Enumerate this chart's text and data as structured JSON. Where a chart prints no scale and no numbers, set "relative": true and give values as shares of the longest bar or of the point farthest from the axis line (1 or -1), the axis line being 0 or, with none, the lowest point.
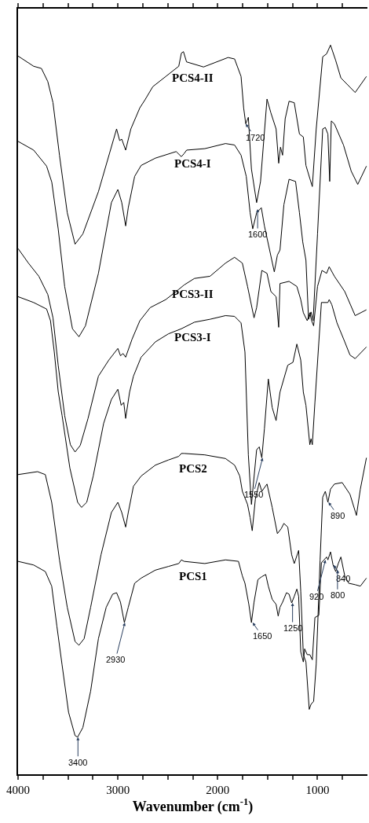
{
  "chart_data": {
    "type": "line",
    "relative": true,
    "xlabel": "Wavenumber (cm$^{-1}$)",
    "xlim": [
      4000,
      500
    ],
    "xticks": [
      4000,
      {
        "value": 3750,
        "label": null
      },
      {
        "value": 3500,
        "label": null
      },
      {
        "value": 3250,
        "label": null
      },
      3000,
      {
        "value": 2750,
        "label": null
      },
      {
        "value": 2500,
        "label": null
      },
      {
        "value": 2250,
        "label": null
      },
      2000,
      {
        "value": 1750,
        "label": null
      },
      {
        "value": 1500,
        "label": null
      },
      {
        "value": 1250,
        "label": null
      },
      1000,
      {
        "value": 750,
        "label": null
      }
    ],
    "tick_labels": "x",
    "legend": false,
    "series": [
      {
        "name": "PCS4-II",
        "color": "#000000",
        "x": [
          4000,
          3844,
          3766,
          3702,
          3650,
          3585,
          3507,
          3429,
          3351,
          3195,
          3013,
          2982,
          2961,
          2922,
          2870,
          2780,
          2728,
          2650,
          2520,
          2390,
          2364,
          2343,
          2312,
          2142,
          1896,
          1831,
          1766,
          1740,
          1719,
          1693,
          1662,
          1610,
          1571,
          1506,
          1467,
          1415,
          1389,
          1371,
          1350,
          1324,
          1285,
          1233,
          1181,
          1142,
          1116,
          1077,
          1052,
          1013,
          948,
          909,
          870,
          818,
          766,
          623,
          510
        ],
        "values": [
          0.985,
          0.971,
          0.968,
          0.95,
          0.921,
          0.849,
          0.77,
          0.727,
          0.741,
          0.799,
          0.885,
          0.869,
          0.871,
          0.856,
          0.885,
          0.914,
          0.925,
          0.943,
          0.957,
          0.971,
          0.989,
          0.991,
          0.977,
          0.97,
          0.983,
          0.981,
          0.957,
          0.914,
          0.892,
          0.901,
          0.83,
          0.784,
          0.813,
          0.926,
          0.907,
          0.885,
          0.838,
          0.86,
          0.849,
          0.899,
          0.923,
          0.921,
          0.878,
          0.874,
          0.835,
          0.817,
          0.806,
          0.885,
          0.984,
          0.988,
          1.0,
          0.979,
          0.955,
          0.935,
          0.957
        ]
      },
      {
        "name": "PCS4-I",
        "color": "#000000",
        "x": [
          4000,
          3844,
          3714,
          3662,
          3598,
          3533,
          3455,
          3390,
          3325,
          3195,
          3065,
          3000,
          2961,
          2922,
          2896,
          2832,
          2767,
          2624,
          2416,
          2364,
          2338,
          2311,
          2129,
          1922,
          1831,
          1766,
          1714,
          1675,
          1649,
          1610,
          1563,
          1532,
          1480,
          1433,
          1402,
          1376,
          1337,
          1285,
          1220,
          1181,
          1148,
          1116,
          1090,
          1065,
          1044,
          1000,
          948,
          922,
          896,
          878,
          862,
          831,
          740,
          662,
          597,
          510
        ],
        "values": [
          0.868,
          0.856,
          0.834,
          0.812,
          0.748,
          0.669,
          0.611,
          0.6,
          0.615,
          0.687,
          0.784,
          0.802,
          0.784,
          0.752,
          0.777,
          0.82,
          0.835,
          0.845,
          0.854,
          0.847,
          0.851,
          0.856,
          0.858,
          0.865,
          0.863,
          0.849,
          0.82,
          0.77,
          0.748,
          0.77,
          0.777,
          0.752,
          0.719,
          0.689,
          0.712,
          0.719,
          0.781,
          0.816,
          0.813,
          0.77,
          0.73,
          0.705,
          0.624,
          0.634,
          0.622,
          0.741,
          0.885,
          0.887,
          0.878,
          0.813,
          0.896,
          0.892,
          0.863,
          0.827,
          0.809,
          0.834
        ]
      },
      {
        "name": "PCS3-II",
        "color": "#000000",
        "x": [
          4000,
          3896,
          3792,
          3702,
          3650,
          3598,
          3533,
          3476,
          3429,
          3377,
          3299,
          3195,
          3091,
          3000,
          2974,
          2948,
          2922,
          2857,
          2780,
          2676,
          2520,
          2390,
          2337,
          2233,
          2077,
          1922,
          1831,
          1753,
          1701,
          1636,
          1610,
          1558,
          1506,
          1467,
          1415,
          1389,
          1376,
          1285,
          1207,
          1168,
          1142,
          1103,
          1077,
          1059,
          1039,
          1000,
          955,
          909,
          883,
          831,
          727,
          623,
          510
        ],
        "values": [
          0.721,
          0.701,
          0.683,
          0.658,
          0.626,
          0.561,
          0.492,
          0.452,
          0.442,
          0.451,
          0.488,
          0.546,
          0.568,
          0.584,
          0.574,
          0.577,
          0.572,
          0.597,
          0.622,
          0.64,
          0.651,
          0.665,
          0.671,
          0.68,
          0.683,
          0.701,
          0.709,
          0.701,
          0.669,
          0.626,
          0.64,
          0.691,
          0.687,
          0.662,
          0.655,
          0.613,
          0.673,
          0.676,
          0.669,
          0.651,
          0.633,
          0.622,
          0.633,
          0.622,
          0.615,
          0.669,
          0.691,
          0.687,
          0.696,
          0.683,
          0.662,
          0.629,
          0.637
        ]
      },
      {
        "name": "PCS3-I",
        "color": "#000000",
        "x": [
          4000,
          3844,
          3714,
          3675,
          3637,
          3598,
          3559,
          3481,
          3403,
          3364,
          3312,
          3247,
          3143,
          3065,
          3000,
          2967,
          2941,
          2922,
          2883,
          2844,
          2767,
          2624,
          2494,
          2364,
          2233,
          2077,
          1922,
          1831,
          1766,
          1727,
          1693,
          1662,
          1610,
          1584,
          1558,
          1532,
          1493,
          1454,
          1415,
          1376,
          1298,
          1246,
          1207,
          1168,
          1142,
          1116,
          1077,
          1065,
          1052,
          1026,
          961,
          896,
          883,
          857,
          805,
          727,
          675,
          623,
          510
        ],
        "values": [
          0.655,
          0.647,
          0.638,
          0.622,
          0.579,
          0.525,
          0.492,
          0.42,
          0.373,
          0.366,
          0.373,
          0.409,
          0.481,
          0.514,
          0.528,
          0.506,
          0.51,
          0.488,
          0.524,
          0.546,
          0.572,
          0.593,
          0.604,
          0.611,
          0.62,
          0.624,
          0.629,
          0.628,
          0.619,
          0.579,
          0.438,
          0.37,
          0.445,
          0.449,
          0.434,
          0.474,
          0.542,
          0.503,
          0.485,
          0.524,
          0.561,
          0.565,
          0.59,
          0.568,
          0.524,
          0.506,
          0.452,
          0.46,
          0.452,
          0.51,
          0.647,
          0.647,
          0.651,
          0.644,
          0.619,
          0.593,
          0.575,
          0.57,
          0.586
        ]
      },
      {
        "name": "PCS2",
        "color": "#000000",
        "x": [
          4000,
          3805,
          3727,
          3663,
          3585,
          3507,
          3429,
          3390,
          3338,
          3273,
          3169,
          3065,
          3000,
          2961,
          2922,
          2896,
          2844,
          2767,
          2624,
          2494,
          2390,
          2364,
          2337,
          2129,
          1922,
          1831,
          1779,
          1753,
          1701,
          1675,
          1654,
          1623,
          1584,
          1558,
          1506,
          1454,
          1402,
          1363,
          1337,
          1298,
          1259,
          1233,
          1189,
          1168,
          1142,
          1116,
          1083,
          1065,
          1039,
          1013,
          974,
          948,
          922,
          896,
          870,
          831,
          753,
          675,
          610,
          571,
          510
        ],
        "values": [
          0.411,
          0.415,
          0.411,
          0.373,
          0.294,
          0.229,
          0.182,
          0.177,
          0.186,
          0.229,
          0.301,
          0.359,
          0.373,
          0.359,
          0.339,
          0.359,
          0.395,
          0.409,
          0.424,
          0.431,
          0.436,
          0.44,
          0.44,
          0.438,
          0.433,
          0.424,
          0.409,
          0.388,
          0.37,
          0.352,
          0.334,
          0.377,
          0.4,
          0.388,
          0.398,
          0.366,
          0.33,
          0.337,
          0.344,
          0.339,
          0.301,
          0.289,
          0.307,
          0.251,
          0.164,
          0.154,
          0.089,
          0.096,
          0.1,
          0.151,
          0.294,
          0.38,
          0.388,
          0.373,
          0.391,
          0.398,
          0.4,
          0.384,
          0.355,
          0.391,
          0.434
        ]
      },
      {
        "name": "PCS1",
        "color": "#000000",
        "x": [
          4000,
          3844,
          3727,
          3663,
          3611,
          3559,
          3494,
          3429,
          3403,
          3351,
          3273,
          3195,
          3117,
          3052,
          3013,
          2974,
          2935,
          2896,
          2832,
          2767,
          2624,
          2494,
          2390,
          2364,
          2337,
          2129,
          1922,
          1792,
          1753,
          1727,
          1688,
          1662,
          1636,
          1597,
          1558,
          1519,
          1493,
          1454,
          1415,
          1394,
          1376,
          1350,
          1311,
          1285,
          1259,
          1233,
          1207,
          1189,
          1168,
          1142,
          1129,
          1103,
          1077,
          1052,
          1026,
          987,
          961,
          935,
          909,
          896,
          870,
          844,
          818,
          792,
          766,
          727,
          688,
          623,
          571,
          510
        ],
        "values": [
          0.292,
          0.287,
          0.278,
          0.258,
          0.203,
          0.15,
          0.085,
          0.053,
          0.051,
          0.064,
          0.114,
          0.186,
          0.229,
          0.247,
          0.249,
          0.236,
          0.208,
          0.229,
          0.262,
          0.269,
          0.28,
          0.285,
          0.289,
          0.294,
          0.292,
          0.289,
          0.294,
          0.292,
          0.272,
          0.262,
          0.233,
          0.208,
          0.236,
          0.267,
          0.271,
          0.274,
          0.258,
          0.24,
          0.233,
          0.217,
          0.229,
          0.236,
          0.249,
          0.247,
          0.235,
          0.244,
          0.254,
          0.244,
          0.168,
          0.154,
          0.172,
          0.164,
          0.164,
          0.157,
          0.215,
          0.218,
          0.29,
          0.294,
          0.298,
          0.294,
          0.305,
          0.287,
          0.278,
          0.289,
          0.298,
          0.272,
          0.262,
          0.26,
          0.258,
          0.269
        ]
      }
    ],
    "annotations": [
      {
        "text": "1720",
        "x": 1720,
        "y": 0.892
      },
      {
        "text": "1600",
        "x": 1600,
        "y": 0.775
      },
      {
        "text": "1550",
        "x": 1550,
        "y": 0.434
      },
      {
        "text": "890",
        "x": 890,
        "y": 0.373
      },
      {
        "text": "3400",
        "x": 3400,
        "y": 0.051
      },
      {
        "text": "2930",
        "x": 2930,
        "y": 0.208
      },
      {
        "text": "1650",
        "x": 1650,
        "y": 0.208
      },
      {
        "text": "1250",
        "x": 1250,
        "y": 0.235
      },
      {
        "text": "920",
        "x": 920,
        "y": 0.294
      },
      {
        "text": "840",
        "x": 840,
        "y": 0.287
      },
      {
        "text": "800",
        "x": 800,
        "y": 0.28
      }
    ]
  }
}
